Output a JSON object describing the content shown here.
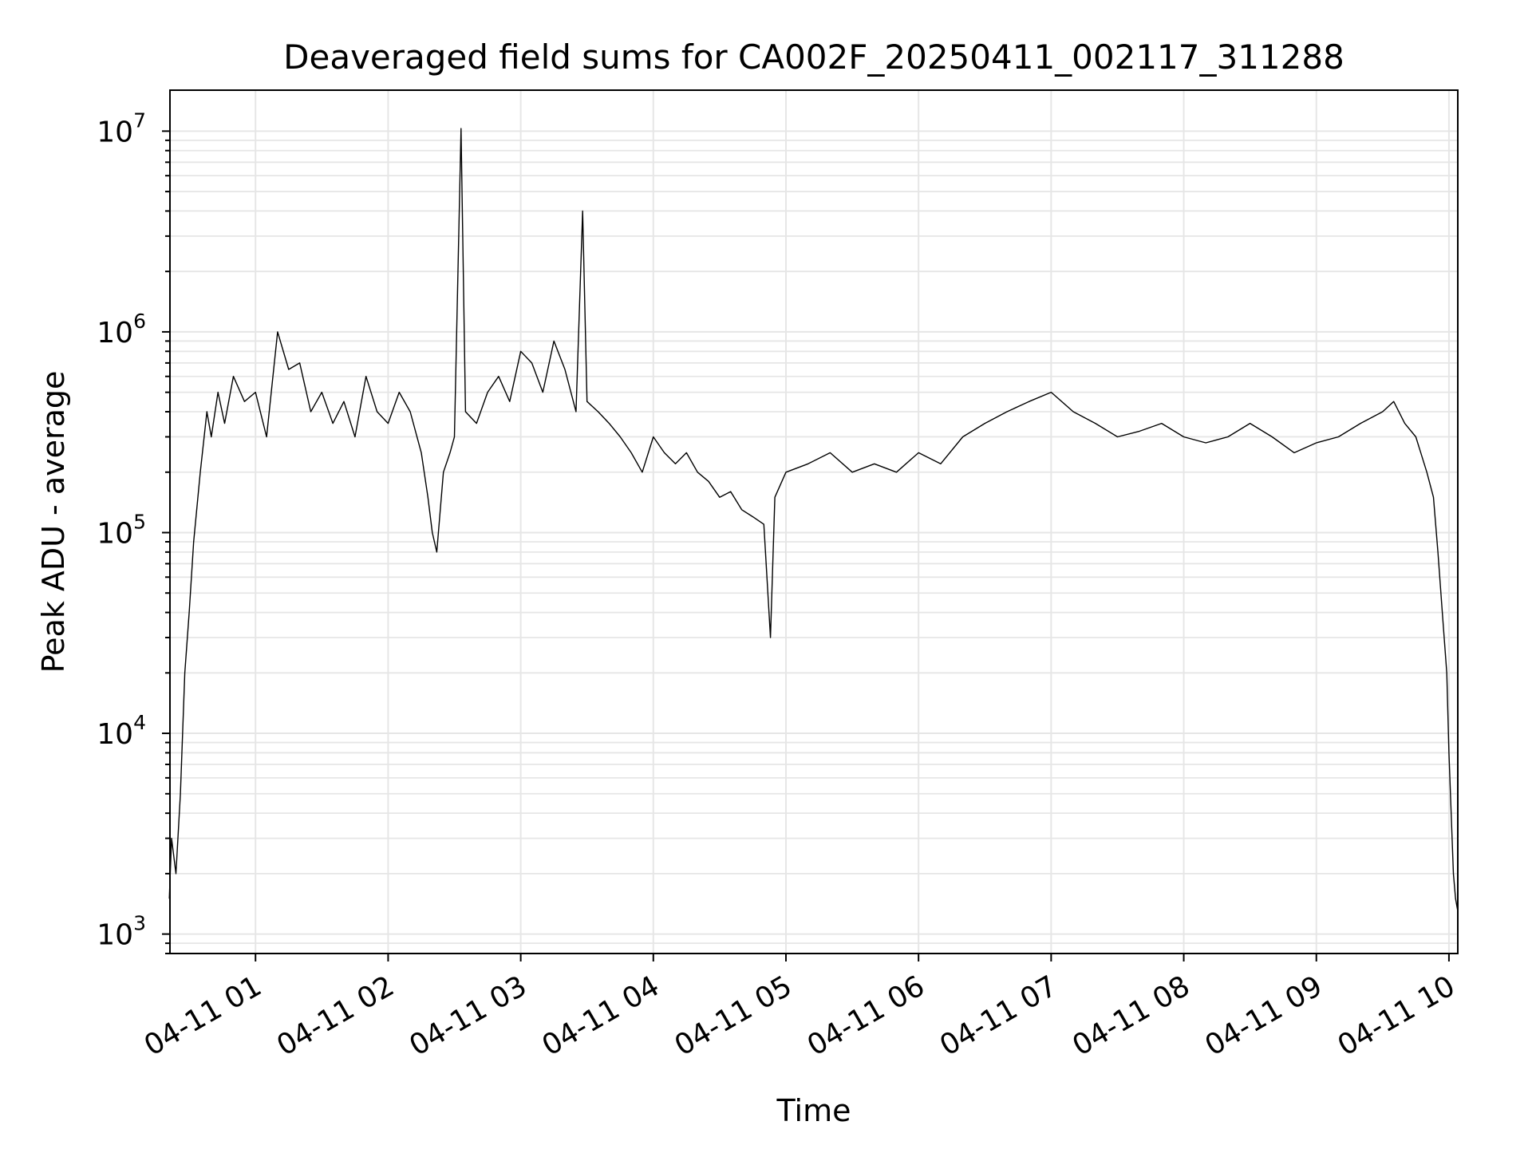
{
  "chart_data": {
    "type": "line",
    "title": "Deaveraged field sums for CA002F_20250411_002117_311288",
    "xlabel": "Time",
    "ylabel": "Peak ADU - average",
    "x_scale": "time",
    "y_scale": "log",
    "xlim": [
      "2025-04-11 00:21:17",
      "2025-04-11 10:04:00"
    ],
    "ylim": [
      800,
      16000000
    ],
    "x_tick_labels": [
      "04-11 01",
      "04-11 02",
      "04-11 03",
      "04-11 04",
      "04-11 05",
      "04-11 06",
      "04-11 07",
      "04-11 08",
      "04-11 09",
      "04-11 10"
    ],
    "y_tick_labels": [
      {
        "base": "10",
        "exp": "3"
      },
      {
        "base": "10",
        "exp": "4"
      },
      {
        "base": "10",
        "exp": "5"
      },
      {
        "base": "10",
        "exp": "6"
      },
      {
        "base": "10",
        "exp": "7"
      }
    ],
    "grid": "major and minor",
    "line_color": "#000000",
    "grid_color": "#e6e6e6",
    "series": [
      {
        "x": [
          "00:21",
          "00:22",
          "00:24",
          "00:26",
          "00:28",
          "00:30",
          "00:32",
          "00:35",
          "00:38",
          "00:40",
          "00:43",
          "00:46",
          "00:50",
          "00:55",
          "01:00",
          "01:05",
          "01:10",
          "01:15",
          "01:20",
          "01:25",
          "01:30",
          "01:35",
          "01:40",
          "01:45",
          "01:50",
          "01:55",
          "02:00",
          "02:05",
          "02:10",
          "02:15",
          "02:18",
          "02:20",
          "02:22",
          "02:25",
          "02:28",
          "02:30",
          "02:33",
          "02:35",
          "02:40",
          "02:45",
          "02:50",
          "02:55",
          "03:00",
          "03:05",
          "03:10",
          "03:15",
          "03:20",
          "03:25",
          "03:28",
          "03:30",
          "03:35",
          "03:40",
          "03:45",
          "03:50",
          "03:55",
          "04:00",
          "04:05",
          "04:10",
          "04:15",
          "04:20",
          "04:25",
          "04:30",
          "04:35",
          "04:40",
          "04:45",
          "04:50",
          "04:53",
          "04:55",
          "05:00",
          "05:10",
          "05:20",
          "05:30",
          "05:40",
          "05:50",
          "06:00",
          "06:10",
          "06:20",
          "06:30",
          "06:40",
          "06:50",
          "07:00",
          "07:10",
          "07:20",
          "07:30",
          "07:40",
          "07:50",
          "08:00",
          "08:10",
          "08:20",
          "08:30",
          "08:40",
          "08:50",
          "09:00",
          "09:10",
          "09:20",
          "09:30",
          "09:35",
          "09:40",
          "09:45",
          "09:50",
          "09:53",
          "09:55",
          "09:57",
          "09:59",
          "10:00",
          "10:01",
          "10:02",
          "10:03",
          "10:04"
        ],
        "values": [
          1500,
          3000,
          2000,
          5000,
          20000,
          40000,
          90000,
          200000,
          400000,
          300000,
          500000,
          350000,
          600000,
          450000,
          500000,
          300000,
          1000000,
          650000,
          700000,
          400000,
          500000,
          350000,
          450000,
          300000,
          600000,
          400000,
          350000,
          500000,
          400000,
          250000,
          150000,
          100000,
          80000,
          200000,
          250000,
          300000,
          10300000,
          400000,
          350000,
          500000,
          600000,
          450000,
          800000,
          700000,
          500000,
          900000,
          650000,
          400000,
          4000000,
          450000,
          400000,
          350000,
          300000,
          250000,
          200000,
          300000,
          250000,
          220000,
          250000,
          200000,
          180000,
          150000,
          160000,
          130000,
          120000,
          110000,
          30000,
          150000,
          200000,
          220000,
          250000,
          200000,
          220000,
          200000,
          250000,
          220000,
          300000,
          350000,
          400000,
          450000,
          500000,
          400000,
          350000,
          300000,
          320000,
          350000,
          300000,
          280000,
          300000,
          350000,
          300000,
          250000,
          280000,
          300000,
          350000,
          400000,
          450000,
          350000,
          300000,
          200000,
          150000,
          80000,
          40000,
          20000,
          8000,
          4000,
          2000,
          1500,
          1300
        ]
      }
    ]
  }
}
